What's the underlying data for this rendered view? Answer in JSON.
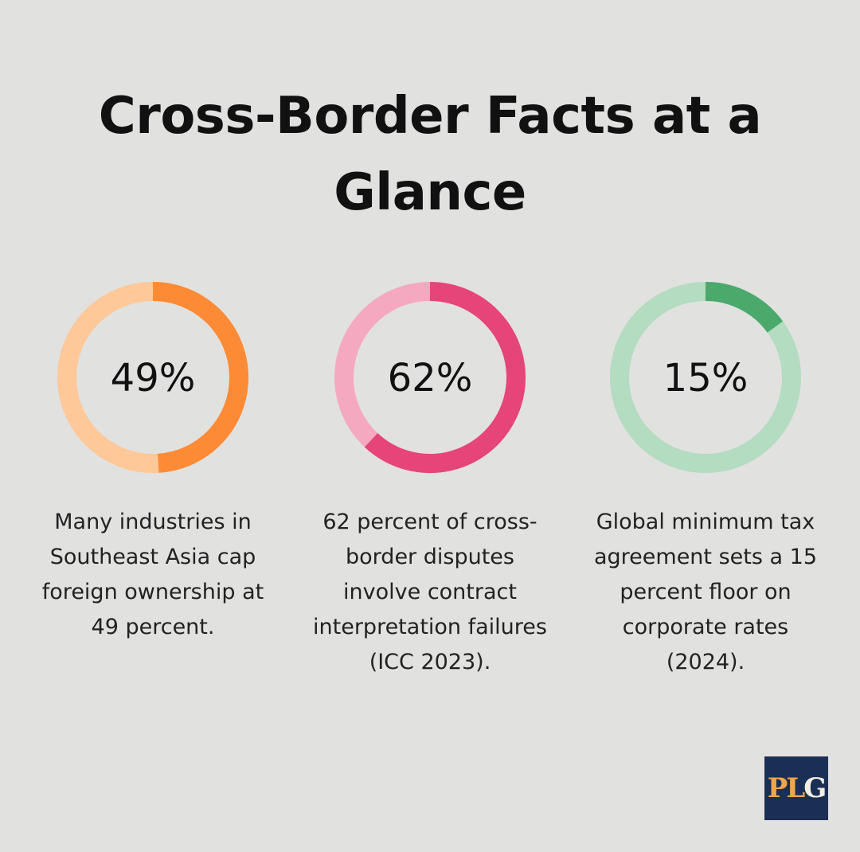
{
  "title": "Cross-Border Facts at a Glance",
  "chart_data": {
    "type": "pie",
    "items": [
      {
        "value": 49,
        "label": "49%",
        "description": "Many industries in Southeast Asia cap foreign ownership at 49 percent.",
        "fill_color": "#fd8b35",
        "track_color": "#fec898"
      },
      {
        "value": 62,
        "label": "62%",
        "description": "62 percent of cross-border disputes involve contract interpretation failures (ICC 2023).",
        "fill_color": "#e54578",
        "track_color": "#f4a9c1"
      },
      {
        "value": 15,
        "label": "15%",
        "description": "Global minimum tax agreement sets a 15 percent floor on corporate rates (2024).",
        "fill_color": "#4aa96b",
        "track_color": "#b3dcc0"
      }
    ]
  },
  "logo": {
    "text_p": "P",
    "text_l": "L",
    "text_g": "G"
  }
}
